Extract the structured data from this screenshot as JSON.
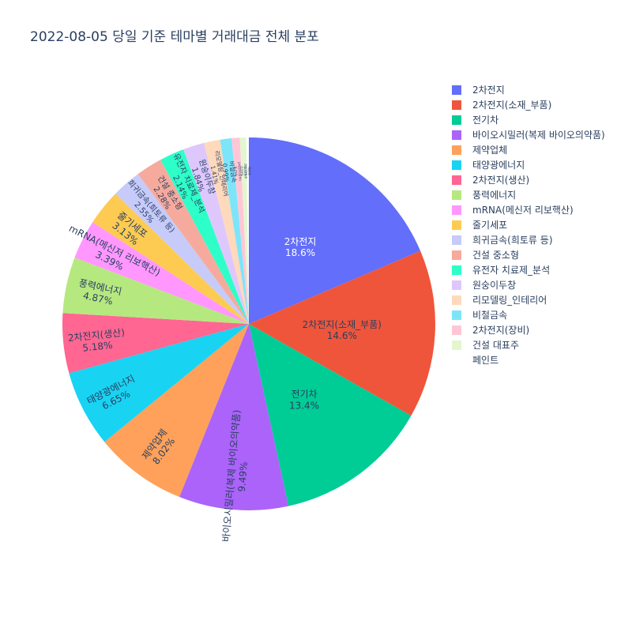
{
  "chart_data": {
    "type": "pie",
    "title": "2022-08-05 당일 기준 테마별 거래대금 전체 분포",
    "slices": [
      {
        "label": "2차전지",
        "value": 18.6,
        "text": "18.6%",
        "color": "#636efa"
      },
      {
        "label": "2차전지(소재_부품)",
        "value": 14.6,
        "text": "14.6%",
        "color": "#EF553B"
      },
      {
        "label": "전기차",
        "value": 13.4,
        "text": "13.4%",
        "color": "#00cc96"
      },
      {
        "label": "바이오시밀러(복제 바이오의약품)",
        "value": 9.49,
        "text": "9.49%",
        "color": "#ab63fa"
      },
      {
        "label": "제약업체",
        "value": 8.02,
        "text": "8.02%",
        "color": "#FFA15A"
      },
      {
        "label": "태양광에너지",
        "value": 6.65,
        "text": "6.65%",
        "color": "#19d3f3"
      },
      {
        "label": "2차전지(생산)",
        "value": 5.18,
        "text": "5.18%",
        "color": "#FF6692"
      },
      {
        "label": "풍력에너지",
        "value": 4.87,
        "text": "4.87%",
        "color": "#B6E880"
      },
      {
        "label": "mRNA(메신저 리보핵산)",
        "value": 3.39,
        "text": "3.39%",
        "color": "#FF97FF"
      },
      {
        "label": "줄기세포",
        "value": 3.13,
        "text": "3.13%",
        "color": "#FECB52"
      },
      {
        "label": "희귀금속(희토류 등)",
        "value": 2.55,
        "text": "2.55%",
        "color": "#c6cbfa"
      },
      {
        "label": "건설 중소형",
        "value": 2.28,
        "text": "2.28%",
        "color": "#f6aa9d"
      },
      {
        "label": "유전자 치료제_분석",
        "value": 2.14,
        "text": "2.14%",
        "color": "#2effc8"
      },
      {
        "label": "원숭이두창",
        "value": 1.84,
        "text": "1.84%",
        "color": "#ddc7fd"
      },
      {
        "label": "리모델링_인테리어",
        "value": 1.41,
        "text": "1.41%",
        "color": "#ffd9bc"
      },
      {
        "label": "비철금속",
        "value": 0.99,
        "text": "0.99%",
        "color": "#7de5f9"
      },
      {
        "label": "2차전지(장비)",
        "value": 0.71,
        "text": "0.71%",
        "color": "#ffc7d6"
      },
      {
        "label": "건설 대표주",
        "value": 0.55,
        "text": "0.55%",
        "color": "#e3f6d0"
      },
      {
        "label": "페인트",
        "value": 0.22,
        "text": "0.22%",
        "color": "#ffffff"
      }
    ]
  }
}
